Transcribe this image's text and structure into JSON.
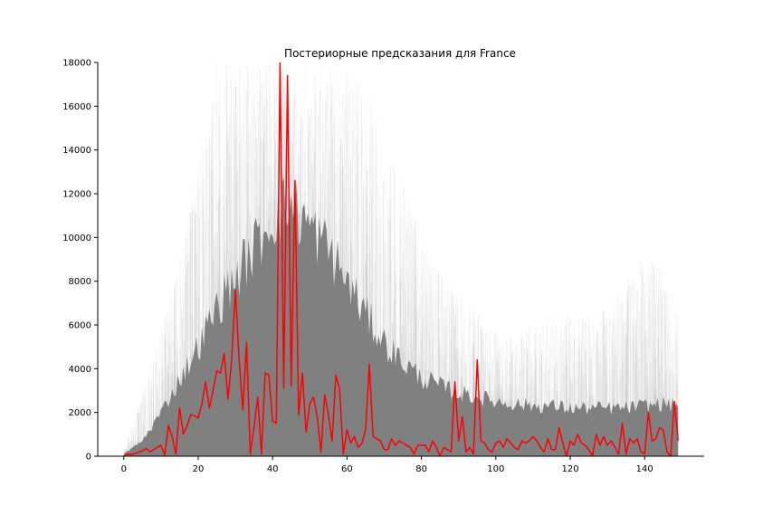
{
  "chart_data": {
    "type": "line",
    "title": "Постериорные предсказания для France",
    "xlabel": "",
    "ylabel": "",
    "xlim": [
      -7,
      156
    ],
    "ylim": [
      0,
      18000
    ],
    "x_ticks": [
      0,
      20,
      40,
      60,
      80,
      100,
      120,
      140
    ],
    "y_ticks": [
      0,
      2000,
      4000,
      6000,
      8000,
      10000,
      12000,
      14000,
      16000,
      18000
    ],
    "grid": false,
    "legend": "none",
    "series": [
      {
        "role": "posterior-samples-band",
        "color": "#808080",
        "x": [
          0,
          5,
          10,
          15,
          20,
          25,
          30,
          35,
          40,
          45,
          50,
          55,
          60,
          65,
          70,
          75,
          80,
          85,
          90,
          95,
          100,
          105,
          110,
          115,
          120,
          125,
          130,
          135,
          140,
          145,
          149
        ],
        "dense_upper": [
          100,
          700,
          2000,
          3500,
          5000,
          6800,
          8200,
          9500,
          11000,
          11500,
          10500,
          9500,
          8000,
          6500,
          5200,
          4300,
          3600,
          3200,
          2900,
          2700,
          2500,
          2400,
          2300,
          2300,
          2200,
          2200,
          2200,
          2200,
          2300,
          2400,
          2300
        ],
        "faint_upper": [
          400,
          3000,
          6000,
          9000,
          14000,
          18000,
          18000,
          18000,
          18000,
          18000,
          18000,
          18000,
          18000,
          17000,
          15000,
          12500,
          10000,
          8500,
          7500,
          6500,
          5800,
          5500,
          6000,
          6500,
          6500,
          6500,
          6800,
          8000,
          9500,
          8500,
          7000
        ]
      },
      {
        "role": "observed",
        "color": "#ff0000",
        "x": [
          0,
          1,
          2,
          3,
          4,
          5,
          6,
          7,
          8,
          9,
          10,
          11,
          12,
          13,
          14,
          15,
          16,
          17,
          18,
          19,
          20,
          21,
          22,
          23,
          24,
          25,
          26,
          27,
          28,
          29,
          30,
          31,
          32,
          33,
          34,
          35,
          36,
          37,
          38,
          39,
          40,
          41,
          42,
          43,
          44,
          45,
          46,
          47,
          48,
          49,
          50,
          51,
          52,
          53,
          54,
          55,
          56,
          57,
          58,
          59,
          60,
          61,
          62,
          63,
          64,
          65,
          66,
          67,
          68,
          69,
          70,
          71,
          72,
          73,
          74,
          75,
          76,
          77,
          78,
          79,
          80,
          81,
          82,
          83,
          84,
          85,
          86,
          87,
          88,
          89,
          90,
          91,
          92,
          93,
          94,
          95,
          96,
          97,
          98,
          99,
          100,
          101,
          102,
          103,
          104,
          105,
          106,
          107,
          108,
          109,
          110,
          111,
          112,
          113,
          114,
          115,
          116,
          117,
          118,
          119,
          120,
          121,
          122,
          123,
          124,
          125,
          126,
          127,
          128,
          129,
          130,
          131,
          132,
          133,
          134,
          135,
          136,
          137,
          138,
          139,
          140,
          141,
          142,
          143,
          144,
          145,
          146,
          147,
          148,
          149
        ],
        "y": [
          10,
          100,
          80,
          120,
          180,
          250,
          350,
          200,
          300,
          400,
          500,
          50,
          1400,
          900,
          100,
          2200,
          1000,
          1400,
          1900,
          1850,
          1750,
          2400,
          3400,
          2200,
          3000,
          3900,
          3800,
          4700,
          2600,
          4400,
          7600,
          4400,
          2100,
          5200,
          100,
          1300,
          2700,
          100,
          3800,
          3700,
          1600,
          1500,
          18000,
          3100,
          17400,
          3200,
          12600,
          1900,
          3800,
          1100,
          2400,
          2700,
          1800,
          200,
          2800,
          1900,
          700,
          3700,
          3100,
          100,
          1200,
          600,
          900,
          400,
          600,
          1200,
          4200,
          900,
          800,
          700,
          300,
          300,
          800,
          500,
          700,
          600,
          500,
          400,
          100,
          500,
          500,
          500,
          200,
          700,
          400,
          0,
          400,
          300,
          200,
          3400,
          700,
          1800,
          200,
          400,
          100,
          4400,
          700,
          600,
          300,
          200,
          600,
          700,
          400,
          800,
          600,
          400,
          300,
          700,
          600,
          700,
          900,
          700,
          400,
          200,
          800,
          300,
          300,
          1300,
          600,
          0,
          700,
          500,
          1000,
          600,
          500,
          300,
          0,
          1000,
          500,
          900,
          500,
          700,
          400,
          100,
          1500,
          100,
          800,
          600,
          800,
          200,
          100,
          2000,
          700,
          800,
          1300,
          1200,
          200,
          0,
          2500,
          700
        ]
      }
    ]
  }
}
